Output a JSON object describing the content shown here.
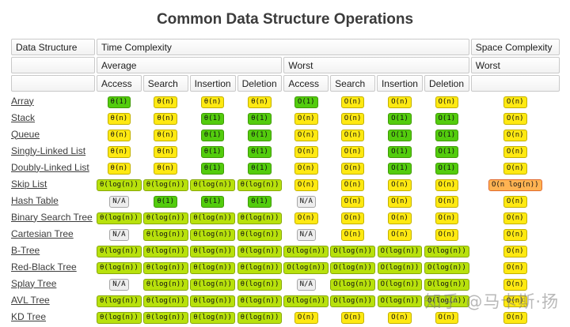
{
  "title": "Common Data Structure Operations",
  "watermark": "知乎 @马卡斯·扬",
  "header": {
    "data_structure": "Data Structure",
    "time_complexity": "Time Complexity",
    "space_complexity": "Space Complexity",
    "average": "Average",
    "worst": "Worst",
    "space_worst": "Worst",
    "op_columns": [
      "Access",
      "Search",
      "Insertion",
      "Deletion",
      "Access",
      "Search",
      "Insertion",
      "Deletion"
    ]
  },
  "colors": {
    "green": {
      "bg": "#53cc0d",
      "border": "#3f9a06"
    },
    "yellowgreen": {
      "bg": "#b8e10c",
      "border": "#87a80a"
    },
    "yellow": {
      "bg": "#ffe912",
      "border": "#c2b100"
    },
    "orange": {
      "bg": "#ffb352",
      "border": "#e0692e"
    },
    "gray": {
      "bg": "#ededed",
      "border": "#a6a6a6"
    }
  },
  "rows": [
    {
      "name": "Array",
      "cells": [
        {
          "t": "θ(1)",
          "c": "green"
        },
        {
          "t": "θ(n)",
          "c": "yellow"
        },
        {
          "t": "θ(n)",
          "c": "yellow"
        },
        {
          "t": "θ(n)",
          "c": "yellow"
        },
        {
          "t": "O(1)",
          "c": "green"
        },
        {
          "t": "O(n)",
          "c": "yellow"
        },
        {
          "t": "O(n)",
          "c": "yellow"
        },
        {
          "t": "O(n)",
          "c": "yellow"
        },
        {
          "t": "O(n)",
          "c": "yellow"
        }
      ]
    },
    {
      "name": "Stack",
      "cells": [
        {
          "t": "θ(n)",
          "c": "yellow"
        },
        {
          "t": "θ(n)",
          "c": "yellow"
        },
        {
          "t": "θ(1)",
          "c": "green"
        },
        {
          "t": "θ(1)",
          "c": "green"
        },
        {
          "t": "O(n)",
          "c": "yellow"
        },
        {
          "t": "O(n)",
          "c": "yellow"
        },
        {
          "t": "O(1)",
          "c": "green"
        },
        {
          "t": "O(1)",
          "c": "green"
        },
        {
          "t": "O(n)",
          "c": "yellow"
        }
      ]
    },
    {
      "name": "Queue",
      "cells": [
        {
          "t": "θ(n)",
          "c": "yellow"
        },
        {
          "t": "θ(n)",
          "c": "yellow"
        },
        {
          "t": "θ(1)",
          "c": "green"
        },
        {
          "t": "θ(1)",
          "c": "green"
        },
        {
          "t": "O(n)",
          "c": "yellow"
        },
        {
          "t": "O(n)",
          "c": "yellow"
        },
        {
          "t": "O(1)",
          "c": "green"
        },
        {
          "t": "O(1)",
          "c": "green"
        },
        {
          "t": "O(n)",
          "c": "yellow"
        }
      ]
    },
    {
      "name": "Singly-Linked List",
      "cells": [
        {
          "t": "θ(n)",
          "c": "yellow"
        },
        {
          "t": "θ(n)",
          "c": "yellow"
        },
        {
          "t": "θ(1)",
          "c": "green"
        },
        {
          "t": "θ(1)",
          "c": "green"
        },
        {
          "t": "O(n)",
          "c": "yellow"
        },
        {
          "t": "O(n)",
          "c": "yellow"
        },
        {
          "t": "O(1)",
          "c": "green"
        },
        {
          "t": "O(1)",
          "c": "green"
        },
        {
          "t": "O(n)",
          "c": "yellow"
        }
      ]
    },
    {
      "name": "Doubly-Linked List",
      "cells": [
        {
          "t": "θ(n)",
          "c": "yellow"
        },
        {
          "t": "θ(n)",
          "c": "yellow"
        },
        {
          "t": "θ(1)",
          "c": "green"
        },
        {
          "t": "θ(1)",
          "c": "green"
        },
        {
          "t": "O(n)",
          "c": "yellow"
        },
        {
          "t": "O(n)",
          "c": "yellow"
        },
        {
          "t": "O(1)",
          "c": "green"
        },
        {
          "t": "O(1)",
          "c": "green"
        },
        {
          "t": "O(n)",
          "c": "yellow"
        }
      ]
    },
    {
      "name": "Skip List",
      "cells": [
        {
          "t": "θ(log(n))",
          "c": "yellowgreen"
        },
        {
          "t": "θ(log(n))",
          "c": "yellowgreen"
        },
        {
          "t": "θ(log(n))",
          "c": "yellowgreen"
        },
        {
          "t": "θ(log(n))",
          "c": "yellowgreen"
        },
        {
          "t": "O(n)",
          "c": "yellow"
        },
        {
          "t": "O(n)",
          "c": "yellow"
        },
        {
          "t": "O(n)",
          "c": "yellow"
        },
        {
          "t": "O(n)",
          "c": "yellow"
        },
        {
          "t": "O(n log(n))",
          "c": "orange"
        }
      ]
    },
    {
      "name": "Hash Table",
      "cells": [
        {
          "t": "N/A",
          "c": "gray"
        },
        {
          "t": "θ(1)",
          "c": "green"
        },
        {
          "t": "θ(1)",
          "c": "green"
        },
        {
          "t": "θ(1)",
          "c": "green"
        },
        {
          "t": "N/A",
          "c": "gray"
        },
        {
          "t": "O(n)",
          "c": "yellow"
        },
        {
          "t": "O(n)",
          "c": "yellow"
        },
        {
          "t": "O(n)",
          "c": "yellow"
        },
        {
          "t": "O(n)",
          "c": "yellow"
        }
      ]
    },
    {
      "name": "Binary Search Tree",
      "cells": [
        {
          "t": "θ(log(n))",
          "c": "yellowgreen"
        },
        {
          "t": "θ(log(n))",
          "c": "yellowgreen"
        },
        {
          "t": "θ(log(n))",
          "c": "yellowgreen"
        },
        {
          "t": "θ(log(n))",
          "c": "yellowgreen"
        },
        {
          "t": "O(n)",
          "c": "yellow"
        },
        {
          "t": "O(n)",
          "c": "yellow"
        },
        {
          "t": "O(n)",
          "c": "yellow"
        },
        {
          "t": "O(n)",
          "c": "yellow"
        },
        {
          "t": "O(n)",
          "c": "yellow"
        }
      ]
    },
    {
      "name": "Cartesian Tree",
      "cells": [
        {
          "t": "N/A",
          "c": "gray"
        },
        {
          "t": "θ(log(n))",
          "c": "yellowgreen"
        },
        {
          "t": "θ(log(n))",
          "c": "yellowgreen"
        },
        {
          "t": "θ(log(n))",
          "c": "yellowgreen"
        },
        {
          "t": "N/A",
          "c": "gray"
        },
        {
          "t": "O(n)",
          "c": "yellow"
        },
        {
          "t": "O(n)",
          "c": "yellow"
        },
        {
          "t": "O(n)",
          "c": "yellow"
        },
        {
          "t": "O(n)",
          "c": "yellow"
        }
      ]
    },
    {
      "name": "B-Tree",
      "cells": [
        {
          "t": "θ(log(n))",
          "c": "yellowgreen"
        },
        {
          "t": "θ(log(n))",
          "c": "yellowgreen"
        },
        {
          "t": "θ(log(n))",
          "c": "yellowgreen"
        },
        {
          "t": "θ(log(n))",
          "c": "yellowgreen"
        },
        {
          "t": "O(log(n))",
          "c": "yellowgreen"
        },
        {
          "t": "O(log(n))",
          "c": "yellowgreen"
        },
        {
          "t": "O(log(n))",
          "c": "yellowgreen"
        },
        {
          "t": "O(log(n))",
          "c": "yellowgreen"
        },
        {
          "t": "O(n)",
          "c": "yellow"
        }
      ]
    },
    {
      "name": "Red-Black Tree",
      "cells": [
        {
          "t": "θ(log(n))",
          "c": "yellowgreen"
        },
        {
          "t": "θ(log(n))",
          "c": "yellowgreen"
        },
        {
          "t": "θ(log(n))",
          "c": "yellowgreen"
        },
        {
          "t": "θ(log(n))",
          "c": "yellowgreen"
        },
        {
          "t": "O(log(n))",
          "c": "yellowgreen"
        },
        {
          "t": "O(log(n))",
          "c": "yellowgreen"
        },
        {
          "t": "O(log(n))",
          "c": "yellowgreen"
        },
        {
          "t": "O(log(n))",
          "c": "yellowgreen"
        },
        {
          "t": "O(n)",
          "c": "yellow"
        }
      ]
    },
    {
      "name": "Splay Tree",
      "cells": [
        {
          "t": "N/A",
          "c": "gray"
        },
        {
          "t": "θ(log(n))",
          "c": "yellowgreen"
        },
        {
          "t": "θ(log(n))",
          "c": "yellowgreen"
        },
        {
          "t": "θ(log(n))",
          "c": "yellowgreen"
        },
        {
          "t": "N/A",
          "c": "gray"
        },
        {
          "t": "O(log(n))",
          "c": "yellowgreen"
        },
        {
          "t": "O(log(n))",
          "c": "yellowgreen"
        },
        {
          "t": "O(log(n))",
          "c": "yellowgreen"
        },
        {
          "t": "O(n)",
          "c": "yellow"
        }
      ]
    },
    {
      "name": "AVL Tree",
      "cells": [
        {
          "t": "θ(log(n))",
          "c": "yellowgreen"
        },
        {
          "t": "θ(log(n))",
          "c": "yellowgreen"
        },
        {
          "t": "θ(log(n))",
          "c": "yellowgreen"
        },
        {
          "t": "θ(log(n))",
          "c": "yellowgreen"
        },
        {
          "t": "O(log(n))",
          "c": "yellowgreen"
        },
        {
          "t": "O(log(n))",
          "c": "yellowgreen"
        },
        {
          "t": "O(log(n))",
          "c": "yellowgreen"
        },
        {
          "t": "O(log(n))",
          "c": "yellowgreen"
        },
        {
          "t": "O(n)",
          "c": "yellow"
        }
      ]
    },
    {
      "name": "KD Tree",
      "cells": [
        {
          "t": "θ(log(n))",
          "c": "yellowgreen"
        },
        {
          "t": "θ(log(n))",
          "c": "yellowgreen"
        },
        {
          "t": "θ(log(n))",
          "c": "yellowgreen"
        },
        {
          "t": "θ(log(n))",
          "c": "yellowgreen"
        },
        {
          "t": "O(n)",
          "c": "yellow"
        },
        {
          "t": "O(n)",
          "c": "yellow"
        },
        {
          "t": "O(n)",
          "c": "yellow"
        },
        {
          "t": "O(n)",
          "c": "yellow"
        },
        {
          "t": "O(n)",
          "c": "yellow"
        }
      ]
    }
  ]
}
